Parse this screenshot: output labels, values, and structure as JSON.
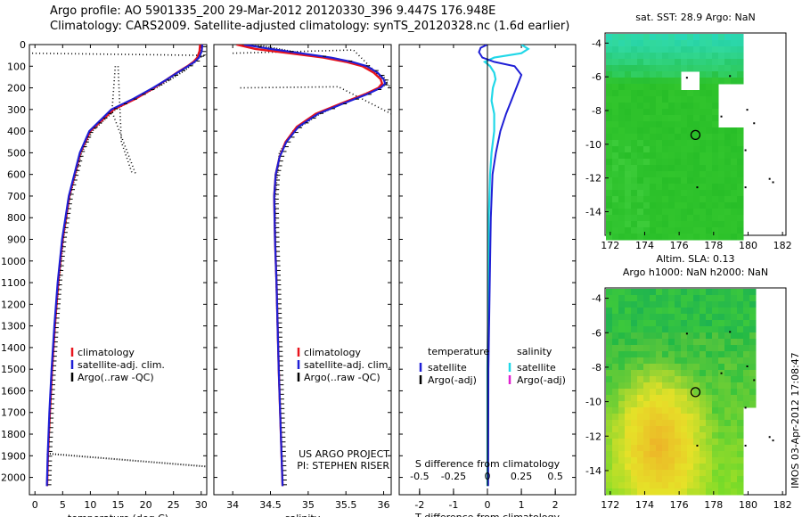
{
  "header": {
    "line1": "Argo profile: AO 5901335_200 29-Mar-2012 20120330_396 9.447S 176.948E",
    "line2": "Climatology: CARS2009. Satellite-adjusted climatology: synTS_20120328.nc (1.6d earlier)"
  },
  "colors": {
    "climatology": "#e8141c",
    "satellite": "#1f1fd6",
    "argo": "#000000",
    "sal_satellite": "#22d8e8",
    "sal_argo": "#e020d0"
  },
  "chart_data": [
    {
      "type": "line",
      "name": "temperature-panel",
      "xlabel": "temperature (deg C)",
      "ylabel": "",
      "xlim": [
        -1,
        31
      ],
      "ylim": [
        2080,
        0
      ],
      "xticks": [
        "0",
        "5",
        "10",
        "15",
        "20",
        "25",
        "30"
      ],
      "yticks": [
        "0",
        "100",
        "200",
        "300",
        "400",
        "500",
        "600",
        "700",
        "800",
        "900",
        "1000",
        "1100",
        "1200",
        "1300",
        "1400",
        "1500",
        "1600",
        "1700",
        "1800",
        "1900",
        "2000"
      ],
      "legend": [
        "climatology",
        "satellite-adj. clim.",
        "Argo(..raw -QC)"
      ],
      "series": [
        {
          "name": "climatology",
          "depth": [
            0,
            30,
            60,
            80,
            100,
            130,
            160,
            200,
            250,
            300,
            400,
            500,
            700,
            900,
            1100,
            1300,
            1500,
            1700,
            1900,
            2040
          ],
          "values": [
            29.8,
            29.7,
            29.3,
            28.6,
            27.5,
            25.6,
            23.9,
            21.5,
            18.2,
            14.2,
            10.0,
            8.2,
            6.2,
            5.0,
            4.2,
            3.6,
            3.1,
            2.7,
            2.35,
            2.2
          ]
        },
        {
          "name": "satellite-adj. clim.",
          "depth": [
            0,
            30,
            60,
            80,
            100,
            130,
            160,
            200,
            250,
            300,
            400,
            500,
            700,
            900,
            1100,
            1300,
            1500,
            1700,
            1900,
            2040
          ],
          "values": [
            30.2,
            30.1,
            29.6,
            28.8,
            27.6,
            25.7,
            23.9,
            21.3,
            17.8,
            13.8,
            9.8,
            8.1,
            6.1,
            4.9,
            4.1,
            3.5,
            3.0,
            2.6,
            2.3,
            2.15
          ]
        },
        {
          "name": "Argo(..raw -QC)",
          "depth": [
            0,
            40,
            80,
            120,
            160,
            200,
            250,
            300,
            400,
            500,
            700,
            900,
            1100,
            1300,
            1500,
            1700,
            1880,
            1890,
            1950
          ],
          "values": [
            29.9,
            29.8,
            28.9,
            27.0,
            24.5,
            21.8,
            18.0,
            14.5,
            10.3,
            8.4,
            6.3,
            5.1,
            4.3,
            3.6,
            3.1,
            2.7,
            2.4,
            2.3,
            31.0
          ]
        }
      ]
    },
    {
      "type": "line",
      "name": "salinity-panel",
      "xlabel": "salinity",
      "ylabel": "",
      "xlim": [
        33.75,
        36.1
      ],
      "ylim": [
        2080,
        0
      ],
      "xticks": [
        "34",
        "34.5",
        "35",
        "35.5",
        "36"
      ],
      "legend": [
        "climatology",
        "satellite-adj. clim.",
        "Argo(..raw -QC)"
      ],
      "annotation": [
        "US ARGO PROJECT",
        "PI: STEPHEN RISER"
      ],
      "series": [
        {
          "name": "climatology",
          "depth": [
            0,
            20,
            40,
            60,
            80,
            100,
            130,
            160,
            180,
            200,
            230,
            270,
            320,
            380,
            450,
            520,
            600,
            700,
            900,
            1100,
            1500,
            2040
          ],
          "values": [
            34.05,
            34.3,
            34.75,
            35.2,
            35.5,
            35.72,
            35.87,
            35.96,
            35.98,
            35.93,
            35.75,
            35.45,
            35.1,
            34.85,
            34.7,
            34.62,
            34.57,
            34.55,
            34.56,
            34.58,
            34.61,
            34.66
          ]
        },
        {
          "name": "satellite-adj. clim.",
          "depth": [
            0,
            20,
            40,
            60,
            80,
            100,
            130,
            160,
            180,
            200,
            230,
            270,
            320,
            380,
            450,
            520,
            600,
            700,
            900,
            1100,
            1500,
            2040
          ],
          "values": [
            34.15,
            34.5,
            34.9,
            35.3,
            35.58,
            35.78,
            35.92,
            36.0,
            36.02,
            35.96,
            35.78,
            35.48,
            35.13,
            34.87,
            34.71,
            34.62,
            34.57,
            34.55,
            34.56,
            34.58,
            34.61,
            34.66
          ]
        },
        {
          "name": "Argo(..raw -QC)",
          "depth": [
            0,
            40,
            60,
            100,
            150,
            180,
            200,
            250,
            320,
            400,
            500,
            700,
            1000,
            1500,
            2040
          ],
          "values": [
            34.3,
            34.9,
            35.25,
            35.75,
            36.0,
            36.05,
            35.95,
            35.6,
            35.15,
            34.8,
            34.62,
            34.56,
            34.57,
            34.61,
            34.66
          ]
        }
      ]
    },
    {
      "type": "line",
      "name": "difference-panel",
      "xlabel": "T difference from climatology",
      "x2label": "S difference from climatology",
      "xlim": [
        -2.6,
        2.6
      ],
      "x2lim": [
        -0.65,
        0.65
      ],
      "ylim": [
        2080,
        0
      ],
      "xticks": [
        "-2",
        "-1",
        "0",
        "1",
        "2"
      ],
      "x2ticks": [
        "-0.5",
        "-0.25",
        "0",
        "0.25",
        "0.5"
      ],
      "legend_groups": [
        {
          "title": "temperature",
          "items": [
            "satellite",
            "Argo(-adj)"
          ]
        },
        {
          "title": "salinity",
          "items": [
            "satellite",
            "Argo(-adj)"
          ]
        }
      ],
      "series": [
        {
          "name": "temperature satellite",
          "depth": [
            0,
            15,
            35,
            60,
            80,
            100,
            140,
            200,
            260,
            320,
            400,
            500,
            600,
            800,
            1000,
            1500,
            2040
          ],
          "values": [
            0.0,
            -0.2,
            -0.25,
            -0.15,
            0.2,
            0.8,
            1.0,
            0.85,
            0.7,
            0.55,
            0.38,
            0.25,
            0.15,
            0.1,
            0.08,
            0.03,
            0.02
          ]
        },
        {
          "name": "salinity satellite",
          "depth": [
            0,
            20,
            40,
            60,
            80,
            100,
            130,
            160,
            200,
            260,
            320,
            400,
            500,
            600,
            800,
            1000,
            1500,
            2040
          ],
          "values": [
            0.25,
            0.3,
            0.25,
            0.05,
            -0.02,
            0.02,
            0.05,
            0.06,
            0.04,
            0.03,
            0.05,
            0.05,
            0.03,
            0.02,
            0.01,
            0.01,
            0.0,
            0.0
          ]
        },
        {
          "name": "Argo(-adj) temperature",
          "depth": [
            0,
            1500,
            2040
          ],
          "values": [
            0,
            0,
            0
          ]
        }
      ]
    }
  ],
  "maps": [
    {
      "name": "sst-map",
      "title_line1": "sat. SST: 28.9 Argo: NaN",
      "title_line2": "",
      "xticks": [
        "172",
        "174",
        "176",
        "178",
        "180",
        "182"
      ],
      "yticks": [
        "-4",
        "-6",
        "-8",
        "-10",
        "-12",
        "-14"
      ],
      "lon_range": [
        171.7,
        182.2
      ],
      "lat_range": [
        -15.4,
        -3.4
      ]
    },
    {
      "name": "sla-map",
      "title_line1": "Altim. SLA: 0.13",
      "title_line2": "Argo h1000: NaN h2000: NaN",
      "xticks": [
        "172",
        "174",
        "176",
        "178",
        "180",
        "182"
      ],
      "yticks": [
        "-4",
        "-6",
        "-8",
        "-10",
        "-12",
        "-14"
      ],
      "lon_range": [
        171.7,
        182.2
      ],
      "lat_range": [
        -15.4,
        -3.4
      ]
    }
  ],
  "argo_position": {
    "lon": 176.948,
    "lat": -9.447
  },
  "credit": "IMOS 03-Apr-2012 17:08:47"
}
